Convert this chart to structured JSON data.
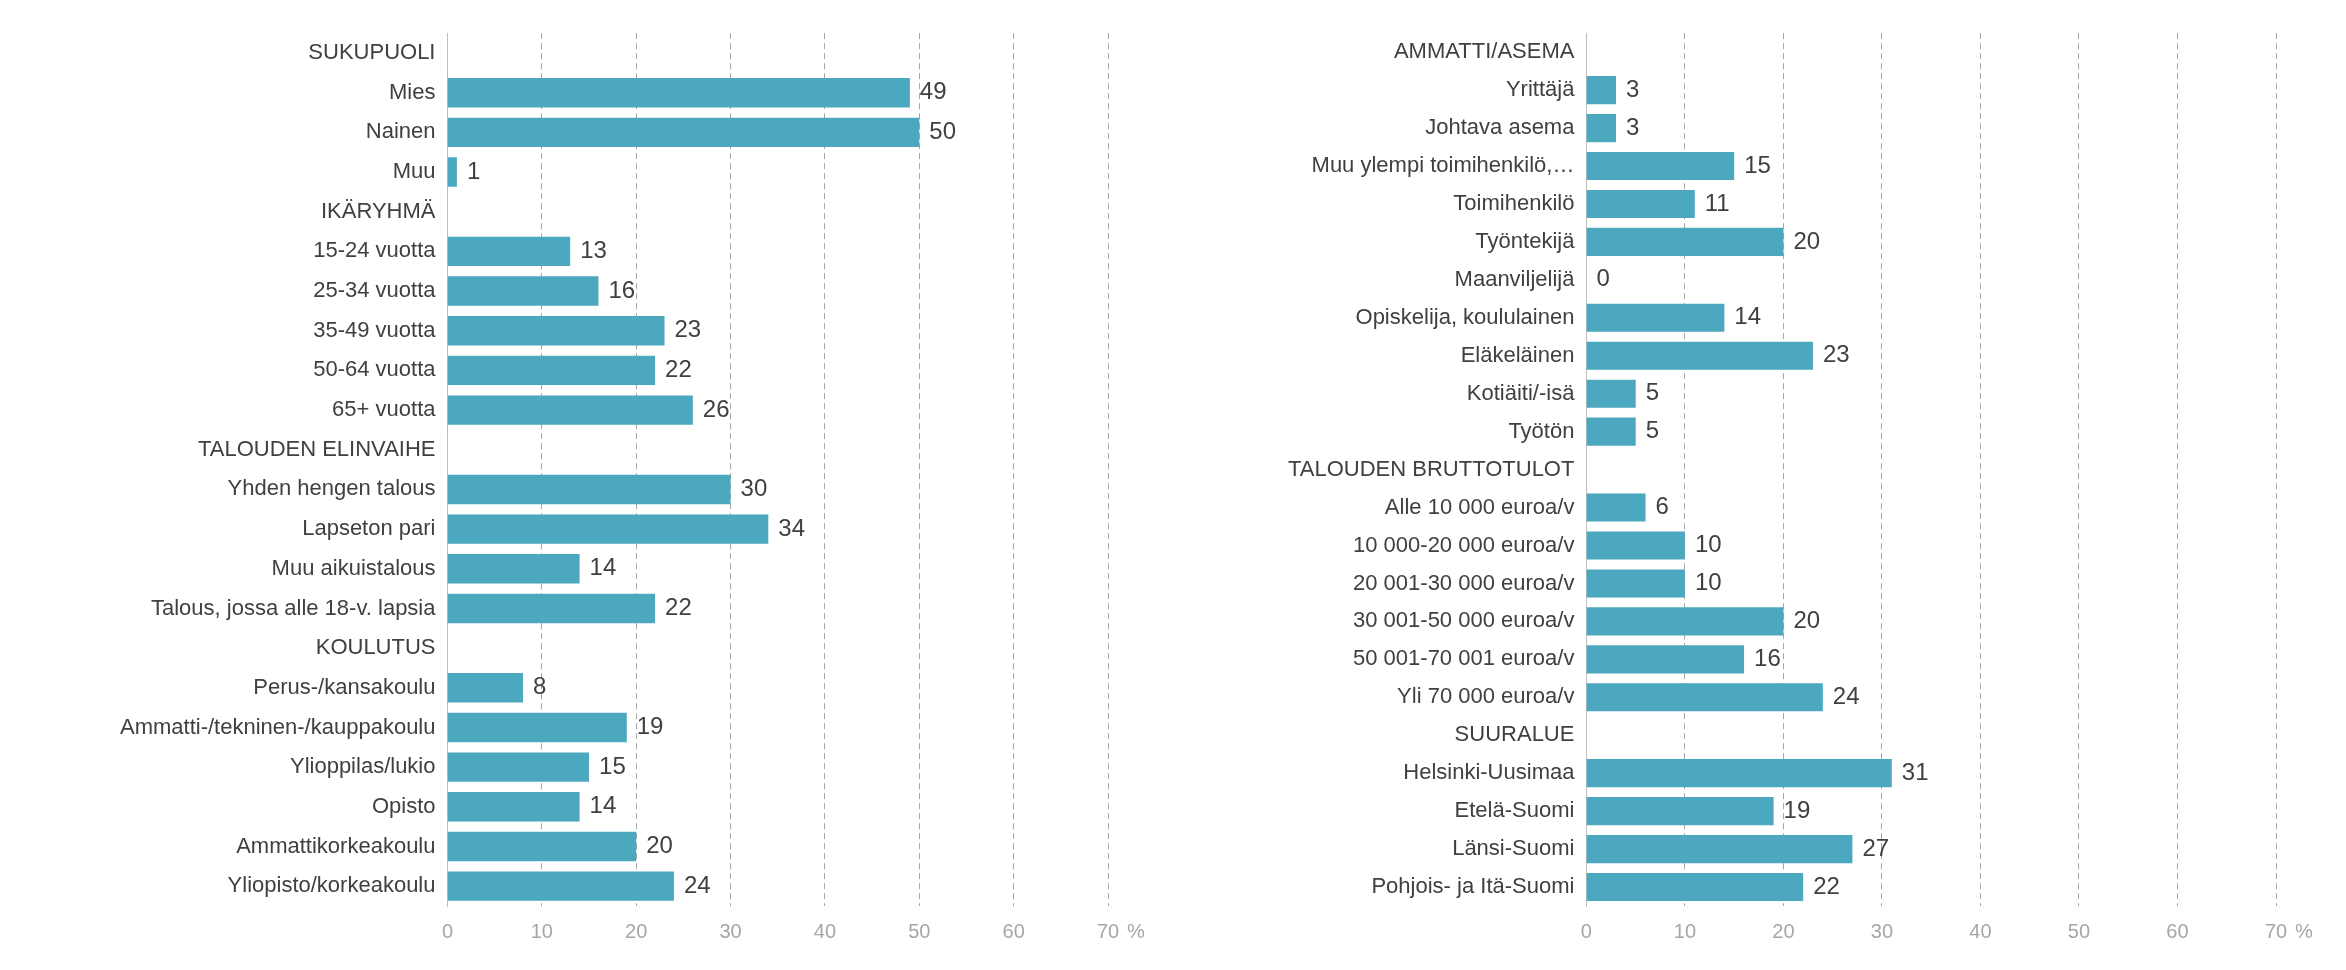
{
  "chart_data": [
    {
      "type": "bar",
      "orientation": "horizontal",
      "xlabel": "%",
      "categories": [
        "SUKUPUOLI",
        "Mies",
        "Nainen",
        "Muu",
        "IKÄRYHMÄ",
        "15-24 vuotta",
        "25-34 vuotta",
        "35-49 vuotta",
        "50-64 vuotta",
        "65+ vuotta",
        "TALOUDEN ELINVAIHE",
        "Yhden hengen talous",
        "Lapseton pari",
        "Muu aikuistalous",
        "Talous, jossa alle 18-v. lapsia",
        "KOULUTUS",
        "Perus-/kansakoulu",
        "Ammatti-/tekninen-/kauppakoulu",
        "Ylioppilas/lukio",
        "Opisto",
        "Ammattikorkeakoulu",
        "Yliopisto/korkeakoulu"
      ],
      "values": [
        null,
        49,
        50,
        1,
        null,
        13,
        16,
        23,
        22,
        26,
        null,
        30,
        34,
        14,
        22,
        null,
        8,
        19,
        15,
        14,
        20,
        24
      ],
      "color": "#4ba8bf",
      "xlim": [
        0,
        70
      ],
      "xticks": [
        0,
        10,
        20,
        30,
        40,
        50,
        60,
        70
      ],
      "grid": "x",
      "data_labels": true
    },
    {
      "type": "bar",
      "orientation": "horizontal",
      "xlabel": "%",
      "categories": [
        "AMMATTI/ASEMA",
        "Yrittäjä",
        "Johtava asema",
        "Muu ylempi toimihenkilö,…",
        "Toimihenkilö",
        "Työntekijä",
        "Maanviljelijä",
        "Opiskelija, koululainen",
        "Eläkeläinen",
        "Kotiäiti/-isä",
        "Työtön",
        "TALOUDEN BRUTTOTULOT",
        "Alle 10 000 euroa/v",
        "10 000-20 000 euroa/v",
        "20 001-30 000 euroa/v",
        "30 001-50 000 euroa/v",
        "50 001-70 001 euroa/v",
        "Yli 70 000 euroa/v",
        "SUURALUE",
        "Helsinki-Uusimaa",
        "Etelä-Suomi",
        "Länsi-Suomi",
        "Pohjois- ja Itä-Suomi"
      ],
      "values": [
        null,
        3,
        3,
        15,
        11,
        20,
        0,
        14,
        23,
        5,
        5,
        null,
        6,
        10,
        10,
        20,
        16,
        24,
        null,
        31,
        19,
        27,
        22
      ],
      "color": "#4ba8bf",
      "xlim": [
        0,
        70
      ],
      "xticks": [
        0,
        10,
        20,
        30,
        40,
        50,
        60,
        70
      ],
      "grid": "x",
      "data_labels": true
    }
  ]
}
